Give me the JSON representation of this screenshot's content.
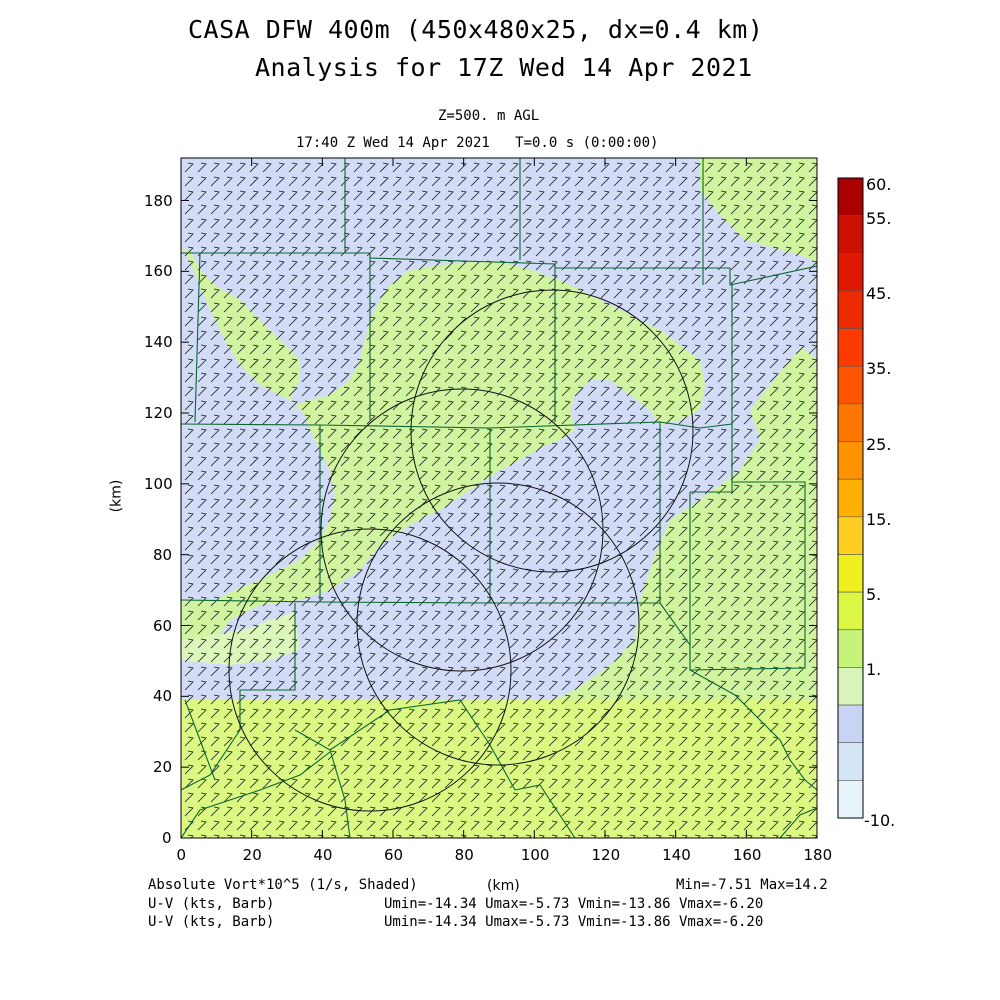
{
  "header": {
    "title_line1": "CASA DFW 400m (450x480x25, dx=0.4 km)",
    "title_line2": "Analysis for 17Z Wed 14 Apr 2021",
    "level": "Z=500. m AGL",
    "time": "17:40 Z Wed 14 Apr 2021   T=0.0 s (0:00:00)"
  },
  "axes": {
    "x_ticks": [
      "0",
      "20",
      "40",
      "60",
      "80",
      "100",
      "120",
      "140",
      "160",
      "180"
    ],
    "y_ticks": [
      "0",
      "20",
      "40",
      "60",
      "80",
      "100",
      "120",
      "140",
      "160",
      "180"
    ],
    "x_label": "(km)",
    "y_label": "(km)",
    "x_range": [
      0,
      180
    ],
    "y_range": [
      0,
      192
    ]
  },
  "colorbar": {
    "labels": [
      "60.",
      "55.",
      "45.",
      "35.",
      "25.",
      "15.",
      "5.",
      "1.",
      "-10."
    ],
    "colors": [
      "#aa0000",
      "#cc1100",
      "#e01800",
      "#ee2a00",
      "#ff3a00",
      "#ff5500",
      "#ff7700",
      "#ff9400",
      "#ffb000",
      "#ffce22",
      "#f0f020",
      "#ddf844",
      "#c6f47a",
      "#d8f4b8",
      "#c8d4f4",
      "#d4e6f6",
      "#e8f4fc"
    ]
  },
  "footer": {
    "field_label": "Absolute Vort*10^5 (1/s, Shaded)",
    "minmax": "Min=-7.51 Max=14.2",
    "barb1_label": "U-V (kts, Barb)",
    "barb1_stats": "Umin=-14.34 Umax=-5.73 Vmin=-13.86 Vmax=-6.20",
    "barb2_label": "U-V (kts, Barb)",
    "barb2_stats": "Umin=-14.34 Umax=-5.73 Vmin=-13.86 Vmax=-6.20"
  },
  "map_colors": {
    "green": "#d0f4a0",
    "lightgreen": "#dcf6bc",
    "blue": "#d2dcf6",
    "yellowgreen": "#dcf87c",
    "boundary": "#0a6632"
  }
}
